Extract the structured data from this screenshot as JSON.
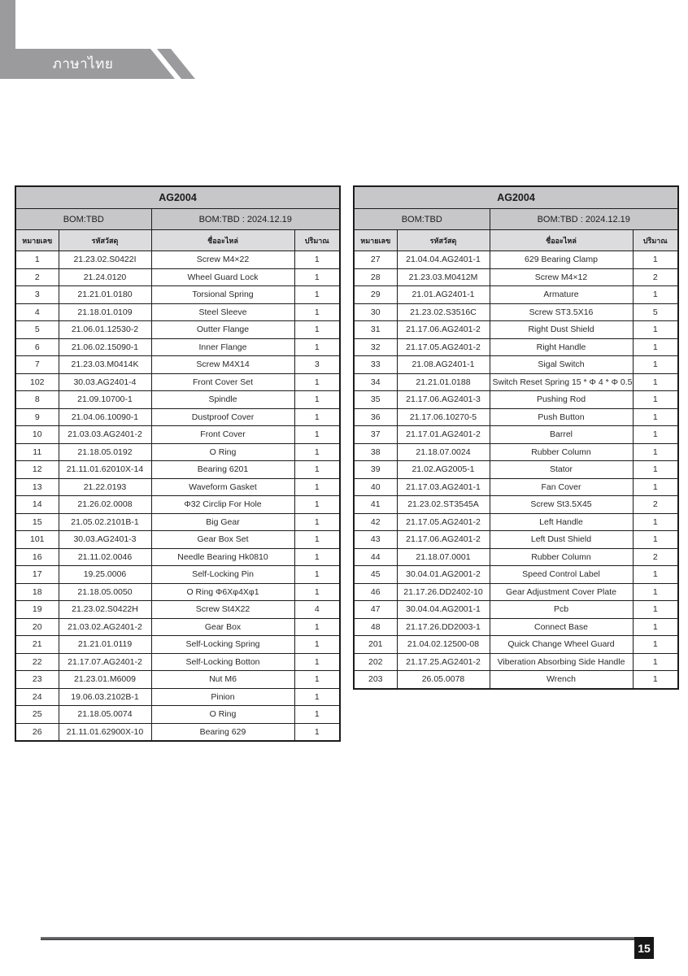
{
  "banner": {
    "title": "ภาษาไทย"
  },
  "footer": {
    "page_number": "15"
  },
  "tables": [
    {
      "title": "AG2004",
      "bom_left": "BOM:TBD",
      "bom_right": "BOM:TBD : 2024.12.19",
      "columns": [
        "หมายเลข",
        "รหัสวัสดุ",
        "ชื่ออะไหล่",
        "ปริมาณ"
      ],
      "rows": [
        [
          "1",
          "21.23.02.S0422I",
          "Screw M4×22",
          "1"
        ],
        [
          "2",
          "21.24.0120",
          "Wheel Guard Lock",
          "1"
        ],
        [
          "3",
          "21.21.01.0180",
          "Torsional Spring",
          "1"
        ],
        [
          "4",
          "21.18.01.0109",
          "Steel Sleeve",
          "1"
        ],
        [
          "5",
          "21.06.01.12530-2",
          "Outter Flange",
          "1"
        ],
        [
          "6",
          "21.06.02.15090-1",
          "Inner Flange",
          "1"
        ],
        [
          "7",
          "21.23.03.M0414K",
          "Screw M4X14",
          "3"
        ],
        [
          "102",
          "30.03.AG2401-4",
          "Front Cover Set",
          "1"
        ],
        [
          "8",
          "21.09.10700-1",
          "Spindle",
          "1"
        ],
        [
          "9",
          "21.04.06.10090-1",
          "Dustproof Cover",
          "1"
        ],
        [
          "10",
          "21.03.03.AG2401-2",
          "Front Cover",
          "1"
        ],
        [
          "11",
          "21.18.05.0192",
          "O Ring",
          "1"
        ],
        [
          "12",
          "21.11.01.62010X-14",
          "Bearing 6201",
          "1"
        ],
        [
          "13",
          "21.22.0193",
          "Waveform Gasket",
          "1"
        ],
        [
          "14",
          "21.26.02.0008",
          "Φ32 Circlip For Hole",
          "1"
        ],
        [
          "15",
          "21.05.02.2101B-1",
          "Big Gear",
          "1"
        ],
        [
          "101",
          "30.03.AG2401-3",
          "Gear Box Set",
          "1"
        ],
        [
          "16",
          "21.11.02.0046",
          "Needle Bearing Hk0810",
          "1"
        ],
        [
          "17",
          "19.25.0006",
          "Self-Locking Pin",
          "1"
        ],
        [
          "18",
          "21.18.05.0050",
          "O Ring Φ6Xφ4Xφ1",
          "1"
        ],
        [
          "19",
          "21.23.02.S0422H",
          "Screw St4X22",
          "4"
        ],
        [
          "20",
          "21.03.02.AG2401-2",
          "Gear Box",
          "1"
        ],
        [
          "21",
          "21.21.01.0119",
          "Self-Locking Spring",
          "1"
        ],
        [
          "22",
          "21.17.07.AG2401-2",
          "Self-Locking Botton",
          "1"
        ],
        [
          "23",
          "21.23.01.M6009",
          "Nut M6",
          "1"
        ],
        [
          "24",
          "19.06.03.2102B-1",
          "Pinion",
          "1"
        ],
        [
          "25",
          "21.18.05.0074",
          "O Ring",
          "1"
        ],
        [
          "26",
          "21.11.01.62900X-10",
          "Bearing 629",
          "1"
        ]
      ]
    },
    {
      "title": "AG2004",
      "bom_left": "BOM:TBD",
      "bom_right": "BOM:TBD : 2024.12.19",
      "columns": [
        "หมายเลข",
        "รหัสวัสดุ",
        "ชื่ออะไหล่",
        "ปริมาณ"
      ],
      "rows": [
        [
          "27",
          "21.04.04.AG2401-1",
          "629 Bearing Clamp",
          "1"
        ],
        [
          "28",
          "21.23.03.M0412M",
          "Screw M4×12",
          "2"
        ],
        [
          "29",
          "21.01.AG2401-1",
          "Armature",
          "1"
        ],
        [
          "30",
          "21.23.02.S3516C",
          "Screw ST3.5X16",
          "5"
        ],
        [
          "31",
          "21.17.06.AG2401-2",
          "Right Dust Shield",
          "1"
        ],
        [
          "32",
          "21.17.05.AG2401-2",
          "Right Handle",
          "1"
        ],
        [
          "33",
          "21.08.AG2401-1",
          "Sigal Switch",
          "1"
        ],
        [
          "34",
          "21.21.01.0188",
          "Switch Reset Spring 15 * Φ 4 * Φ 0.5",
          "1"
        ],
        [
          "35",
          "21.17.06.AG2401-3",
          "Pushing Rod",
          "1"
        ],
        [
          "36",
          "21.17.06.10270-5",
          "Push Button",
          "1"
        ],
        [
          "37",
          "21.17.01.AG2401-2",
          "Barrel",
          "1"
        ],
        [
          "38",
          "21.18.07.0024",
          "Rubber Column",
          "1"
        ],
        [
          "39",
          "21.02.AG2005-1",
          "Stator",
          "1"
        ],
        [
          "40",
          "21.17.03.AG2401-1",
          "Fan Cover",
          "1"
        ],
        [
          "41",
          "21.23.02.ST3545A",
          "Screw St3.5X45",
          "2"
        ],
        [
          "42",
          "21.17.05.AG2401-2",
          "Left Handle",
          "1"
        ],
        [
          "43",
          "21.17.06.AG2401-2",
          "Left Dust Shield",
          "1"
        ],
        [
          "44",
          "21.18.07.0001",
          "Rubber Column",
          "2"
        ],
        [
          "45",
          "30.04.01.AG2001-2",
          "Speed Control Label",
          "1"
        ],
        [
          "46",
          "21.17.26.DD2402-10",
          "Gear Adjustment Cover Plate",
          "1"
        ],
        [
          "47",
          "30.04.04.AG2001-1",
          "Pcb",
          "1"
        ],
        [
          "48",
          "21.17.26.DD2003-1",
          "Connect Base",
          "1"
        ],
        [
          "201",
          "21.04.02.12500-08",
          "Quick Change Wheel Guard",
          "1"
        ],
        [
          "202",
          "21.17.25.AG2401-2",
          "Viberation Absorbing Side Handle",
          "1"
        ],
        [
          "203",
          "26.05.0078",
          "Wrench",
          "1"
        ]
      ]
    }
  ]
}
